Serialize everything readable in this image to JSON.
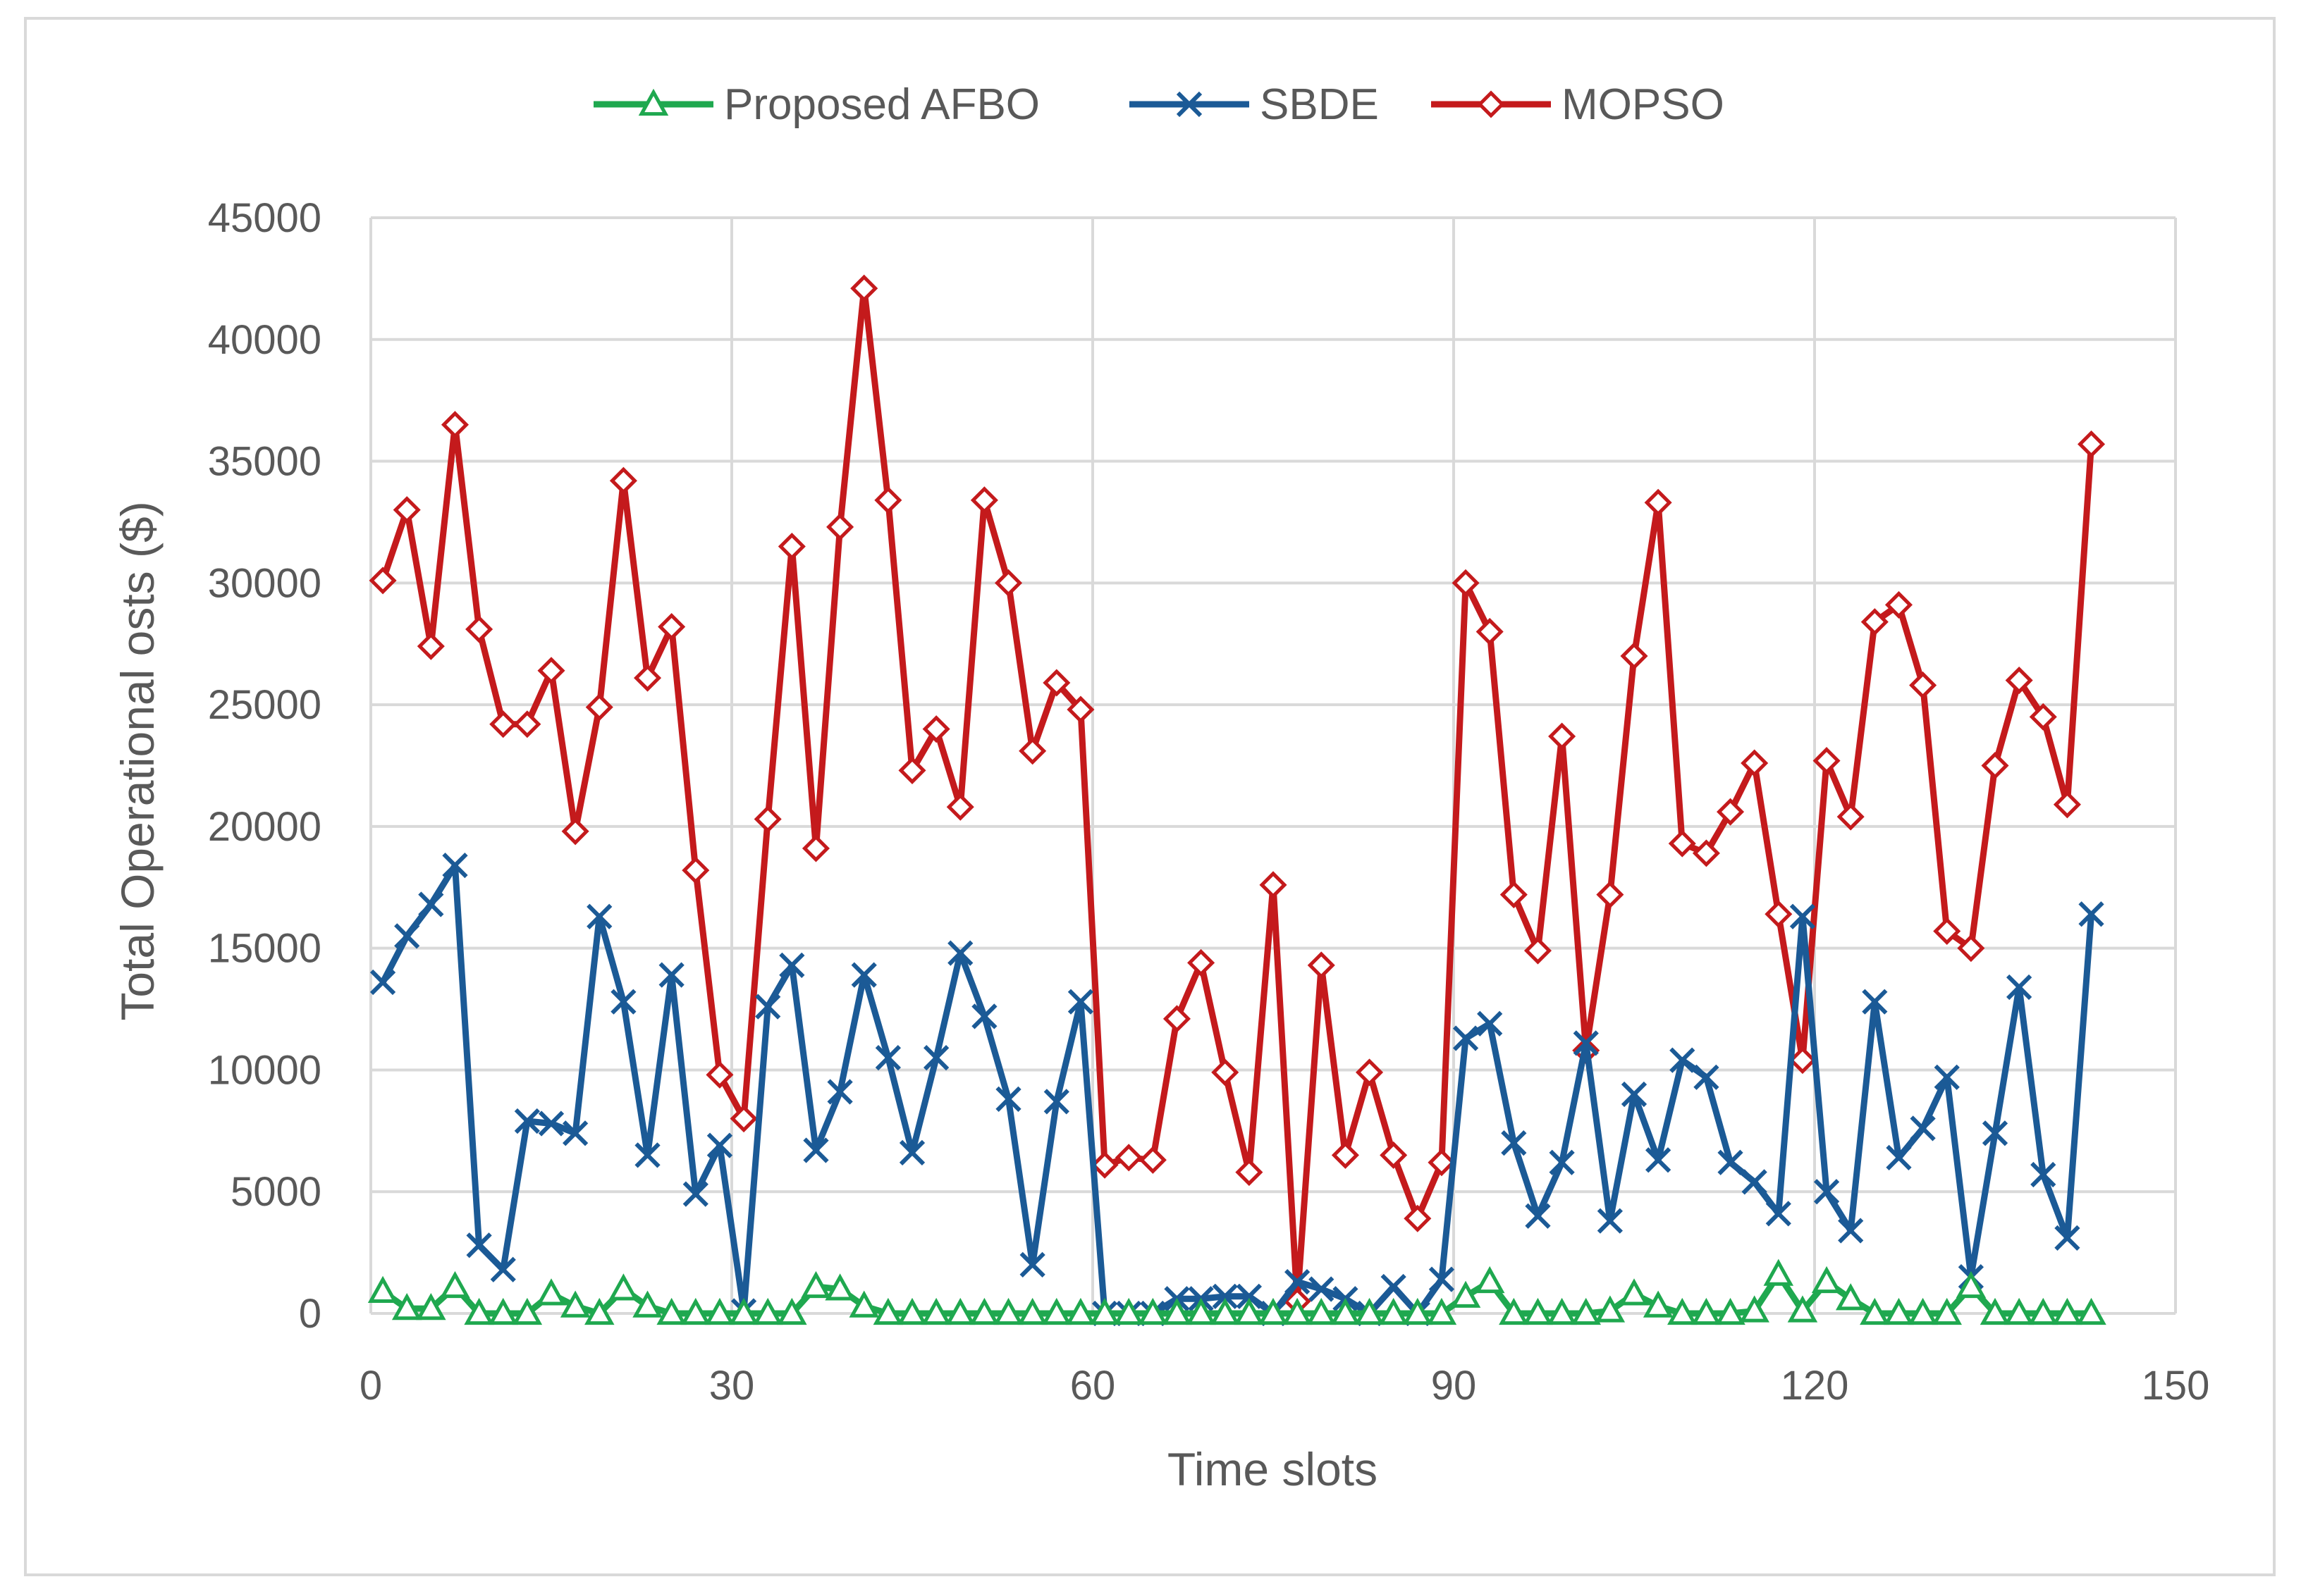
{
  "chart_data": {
    "type": "line",
    "title": "",
    "xlabel": "Time slots",
    "ylabel": "Total Operational osts  ($)",
    "xlim": [
      0,
      150
    ],
    "ylim": [
      0,
      45000
    ],
    "xticks": [
      0,
      30,
      60,
      90,
      120,
      150
    ],
    "yticks": [
      0,
      5000,
      10000,
      15000,
      20000,
      25000,
      30000,
      35000,
      40000,
      45000
    ],
    "xtick_labels": [
      "0",
      "30",
      "60",
      "90",
      "120",
      "150"
    ],
    "ytick_labels": [
      "0",
      "5000",
      "10000",
      "15000",
      "20000",
      "25000",
      "30000",
      "35000",
      "40000",
      "45000"
    ],
    "grid": true,
    "legend_position": "top-center",
    "x": [
      1,
      3,
      5,
      7,
      9,
      11,
      13,
      15,
      17,
      19,
      21,
      23,
      25,
      27,
      29,
      31,
      33,
      35,
      37,
      39,
      41,
      43,
      45,
      47,
      49,
      51,
      53,
      55,
      57,
      59,
      61,
      63,
      65,
      67,
      69,
      71,
      73,
      75,
      77,
      79,
      81,
      83,
      85,
      87,
      89,
      91,
      93,
      95,
      97,
      99,
      101,
      103,
      105,
      107,
      109,
      111,
      113,
      115,
      117,
      119,
      121,
      123,
      125,
      127,
      129,
      131,
      133,
      135,
      137,
      139,
      141,
      143
    ],
    "series": [
      {
        "name": "Proposed AFBO",
        "color": "#1fa84f",
        "marker": "triangle",
        "values": [
          900,
          200,
          200,
          1100,
          0,
          0,
          0,
          800,
          300,
          0,
          1000,
          300,
          0,
          0,
          0,
          0,
          0,
          0,
          1100,
          1000,
          300,
          0,
          0,
          0,
          0,
          0,
          0,
          0,
          0,
          0,
          0,
          0,
          0,
          0,
          0,
          0,
          0,
          0,
          0,
          0,
          0,
          0,
          0,
          0,
          0,
          700,
          1300,
          0,
          0,
          0,
          0,
          100,
          800,
          300,
          0,
          0,
          0,
          100,
          1600,
          100,
          1300,
          600,
          0,
          0,
          0,
          0,
          1100,
          0,
          0,
          0,
          0,
          0
        ]
      },
      {
        "name": "SBDE",
        "color": "#1b5a96",
        "marker": "x",
        "values": [
          13600,
          15500,
          16800,
          18400,
          2800,
          1800,
          7900,
          7800,
          7400,
          16300,
          12800,
          6500,
          13900,
          4900,
          6900,
          100,
          12600,
          14300,
          6700,
          9100,
          13900,
          10500,
          6600,
          10500,
          14800,
          12200,
          8800,
          2000,
          8700,
          12800,
          0,
          0,
          0,
          600,
          600,
          700,
          700,
          0,
          1300,
          1000,
          600,
          0,
          1100,
          0,
          1400,
          11300,
          11900,
          7000,
          4000,
          6200,
          11100,
          3800,
          9000,
          6300,
          10400,
          9700,
          6200,
          5400,
          4100,
          16300,
          5000,
          3400,
          12800,
          6400,
          7600,
          9700,
          1500,
          7400,
          13400,
          5700,
          3100,
          16400
        ]
      },
      {
        "name": "MOPSO",
        "color": "#c41a1c",
        "marker": "diamond",
        "values": [
          30100,
          33000,
          27400,
          36500,
          28100,
          24200,
          24200,
          26400,
          19800,
          24900,
          34200,
          26100,
          28200,
          18200,
          9800,
          8000,
          20300,
          31500,
          19100,
          32300,
          42100,
          33400,
          22300,
          24000,
          20800,
          33400,
          30000,
          23100,
          25900,
          24800,
          6100,
          6400,
          6300,
          12100,
          14400,
          9900,
          5800,
          17600,
          500,
          14300,
          6500,
          9900,
          6500,
          3900,
          6200,
          30000,
          28000,
          17200,
          14900,
          23700,
          10800,
          17200,
          27000,
          33300,
          19300,
          18900,
          20600,
          22600,
          16400,
          10400,
          22700,
          20400,
          28400,
          29100,
          25800,
          15700,
          15000,
          22500,
          26000,
          24500,
          20900,
          35700
        ]
      }
    ]
  }
}
